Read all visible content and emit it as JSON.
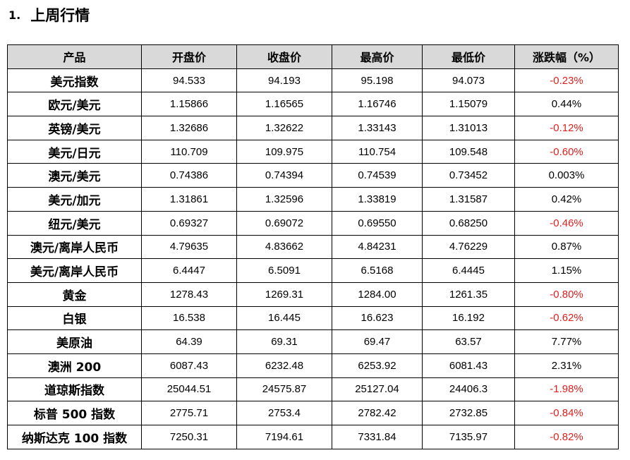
{
  "section": {
    "number": "1.",
    "title": "上周行情"
  },
  "table": {
    "headers": [
      "产品",
      "开盘价",
      "收盘价",
      "最高价",
      "最低价",
      "涨跌幅（%）"
    ],
    "rows": [
      [
        "美元指数",
        "94.533",
        "94.193",
        "95.198",
        "94.073",
        "-0.23%"
      ],
      [
        "欧元/美元",
        "1.15866",
        "1.16565",
        "1.16746",
        "1.15079",
        "0.44%"
      ],
      [
        "英镑/美元",
        "1.32686",
        "1.32622",
        "1.33143",
        "1.31013",
        "-0.12%"
      ],
      [
        "美元/日元",
        "110.709",
        "109.975",
        "110.754",
        "109.548",
        "-0.60%"
      ],
      [
        "澳元/美元",
        "0.74386",
        "0.74394",
        "0.74539",
        "0.73452",
        "0.003%"
      ],
      [
        "美元/加元",
        "1.31861",
        "1.32596",
        "1.33819",
        "1.31587",
        "0.42%"
      ],
      [
        "纽元/美元",
        "0.69327",
        "0.69072",
        "0.69550",
        "0.68250",
        "-0.46%"
      ],
      [
        "澳元/离岸人民币",
        "4.79635",
        "4.83662",
        "4.84231",
        "4.76229",
        "0.87%"
      ],
      [
        "美元/离岸人民币",
        "6.4447",
        "6.5091",
        "6.5168",
        "6.4445",
        "1.15%"
      ],
      [
        "黄金",
        "1278.43",
        "1269.31",
        "1284.00",
        "1261.35",
        "-0.80%"
      ],
      [
        "白银",
        "16.538",
        "16.445",
        "16.623",
        "16.192",
        "-0.62%"
      ],
      [
        "美原油",
        "64.39",
        "69.31",
        "69.47",
        "63.57",
        "7.77%"
      ],
      [
        "澳洲 200",
        "6087.43",
        "6232.48",
        "6253.92",
        "6081.43",
        "2.31%"
      ],
      [
        "道琼斯指数",
        "25044.51",
        "24575.87",
        "25127.04",
        "24406.3",
        "-1.98%"
      ],
      [
        "标普 500 指数",
        "2775.71",
        "2753.4",
        "2782.42",
        "2732.85",
        "-0.84%"
      ],
      [
        "纳斯达克 100 指数",
        "7250.31",
        "7194.61",
        "7331.84",
        "7135.97",
        "-0.82%"
      ]
    ]
  },
  "colors": {
    "negative": "#e0201f",
    "header_bg": "#d9d9d9"
  }
}
